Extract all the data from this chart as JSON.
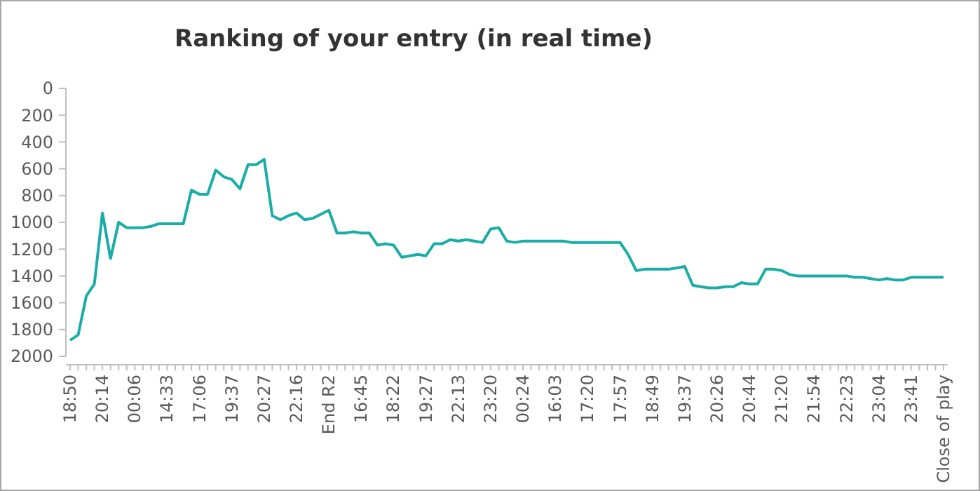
{
  "chart_data": {
    "type": "line",
    "title": "Ranking of your entry (in real time)",
    "categories": [
      "18:50",
      null,
      null,
      null,
      "20:14",
      null,
      null,
      null,
      "00:06",
      null,
      null,
      null,
      "14:33",
      null,
      null,
      null,
      "17:06",
      null,
      null,
      null,
      "19:37",
      null,
      null,
      null,
      "20:27",
      null,
      null,
      null,
      "22:16",
      null,
      null,
      null,
      "End R2",
      null,
      null,
      null,
      "16:45",
      null,
      null,
      null,
      "18:22",
      null,
      null,
      null,
      "19:27",
      null,
      null,
      null,
      "22:13",
      null,
      null,
      null,
      "23:20",
      null,
      null,
      null,
      "00:24",
      null,
      null,
      null,
      "16:03",
      null,
      null,
      null,
      "17:20",
      null,
      null,
      null,
      "17:57",
      null,
      null,
      null,
      "18:49",
      null,
      null,
      null,
      "19:37",
      null,
      null,
      null,
      "20:26",
      null,
      null,
      null,
      "20:44",
      null,
      null,
      null,
      "21:20",
      null,
      null,
      null,
      "21:54",
      null,
      null,
      null,
      "22:23",
      null,
      null,
      null,
      "23:04",
      null,
      null,
      null,
      "23:41",
      null,
      null,
      null,
      "Close of play"
    ],
    "series": [
      {
        "color": "#1aada8",
        "values": [
          1880,
          1840,
          1550,
          1460,
          930,
          1270,
          1000,
          1040,
          1040,
          1040,
          1030,
          1010,
          1010,
          1010,
          1010,
          760,
          790,
          790,
          610,
          660,
          680,
          750,
          570,
          570,
          530,
          950,
          980,
          950,
          930,
          980,
          970,
          940,
          910,
          1080,
          1080,
          1070,
          1080,
          1080,
          1170,
          1160,
          1170,
          1260,
          1250,
          1240,
          1250,
          1160,
          1160,
          1130,
          1140,
          1130,
          1140,
          1150,
          1050,
          1040,
          1140,
          1150,
          1140,
          1140,
          1140,
          1140,
          1140,
          1140,
          1150,
          1150,
          1150,
          1150,
          1150,
          1150,
          1150,
          1240,
          1360,
          1350,
          1350,
          1350,
          1350,
          1340,
          1330,
          1470,
          1480,
          1490,
          1490,
          1480,
          1480,
          1450,
          1460,
          1460,
          1350,
          1350,
          1360,
          1390,
          1400,
          1400,
          1400,
          1400,
          1400,
          1400,
          1400,
          1410,
          1410,
          1420,
          1430,
          1420,
          1430,
          1430,
          1410,
          1410,
          1410,
          1410,
          1410
        ]
      }
    ],
    "ylim": [
      2000,
      0
    ],
    "yticks": [
      0,
      200,
      400,
      600,
      800,
      1000,
      1200,
      1400,
      1600,
      1800,
      2000
    ],
    "line_style": "solid"
  }
}
